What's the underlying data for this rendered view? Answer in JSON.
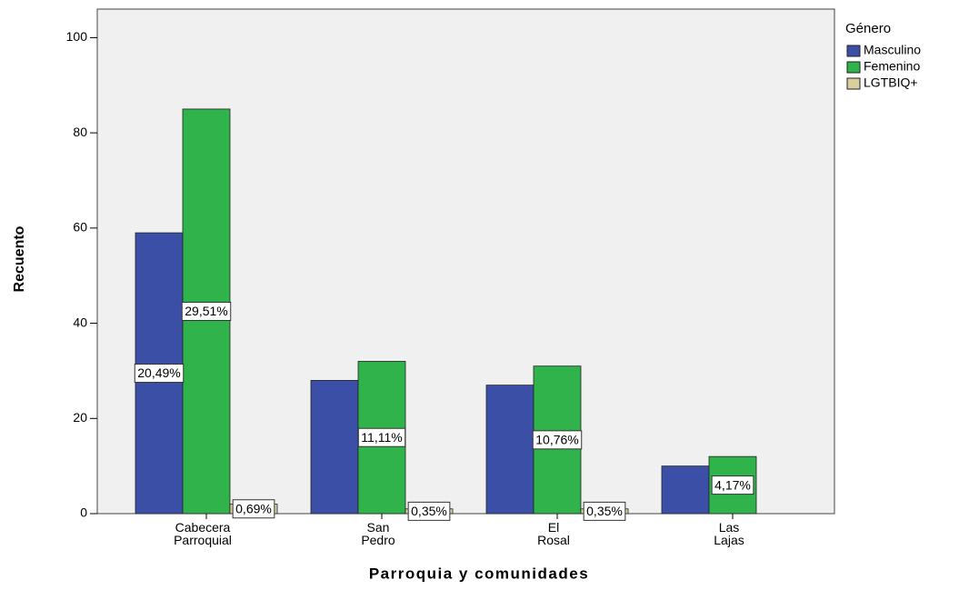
{
  "chart_data": {
    "type": "bar",
    "y_label": "Recuento",
    "x_label": "Parroquia y comunidades",
    "legend_title": "Género",
    "categories": [
      "Cabecera Parroquial",
      "San Pedro",
      "El Rosal",
      "Las Lajas"
    ],
    "series": [
      {
        "name": "Masculino",
        "color": "#3c4fa6",
        "values": [
          59,
          28,
          27,
          10
        ],
        "labels": [
          "20,49%",
          null,
          null,
          null
        ]
      },
      {
        "name": "Femenino",
        "color": "#2fb34a",
        "values": [
          85,
          32,
          31,
          12
        ],
        "labels": [
          "29,51%",
          "11,11%",
          "10,76%",
          "4,17%"
        ]
      },
      {
        "name": "LGTBIQ+",
        "color": "#d8cf9c",
        "values": [
          2,
          1,
          1,
          0
        ],
        "labels": [
          "0,69%",
          "0,35%",
          "0,35%",
          null
        ]
      }
    ],
    "ylim": [
      0,
      106
    ],
    "yticks": [
      0,
      20,
      40,
      60,
      80,
      100
    ],
    "grid": false,
    "legend": "right"
  }
}
